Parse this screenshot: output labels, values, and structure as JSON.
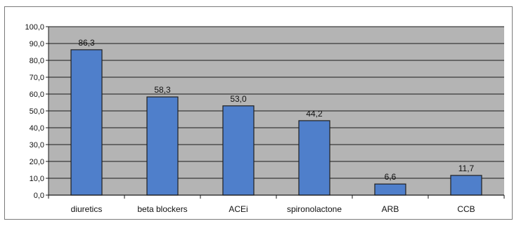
{
  "chart_data": {
    "type": "bar",
    "categories": [
      "diuretics",
      "beta blockers",
      "ACEi",
      "spironolactone",
      "ARB",
      "CCB"
    ],
    "values": [
      86.3,
      58.3,
      53.0,
      44.2,
      6.6,
      11.7
    ],
    "value_labels": [
      "86,3",
      "58,3",
      "53,0",
      "44,2",
      "6,6",
      "11,7"
    ],
    "y_ticks": [
      "0,0",
      "10,0",
      "20,0",
      "30,0",
      "40,0",
      "50,0",
      "60,0",
      "70,0",
      "80,0",
      "90,0",
      "100,0"
    ],
    "ylim": [
      0,
      100
    ],
    "grid": true,
    "legend": "none",
    "colors": {
      "bar": "#4f7fcb",
      "bar_border": "#1f1f1f",
      "plot_bg": "#b4b4b4",
      "gridline": "#1a1a1a"
    }
  }
}
